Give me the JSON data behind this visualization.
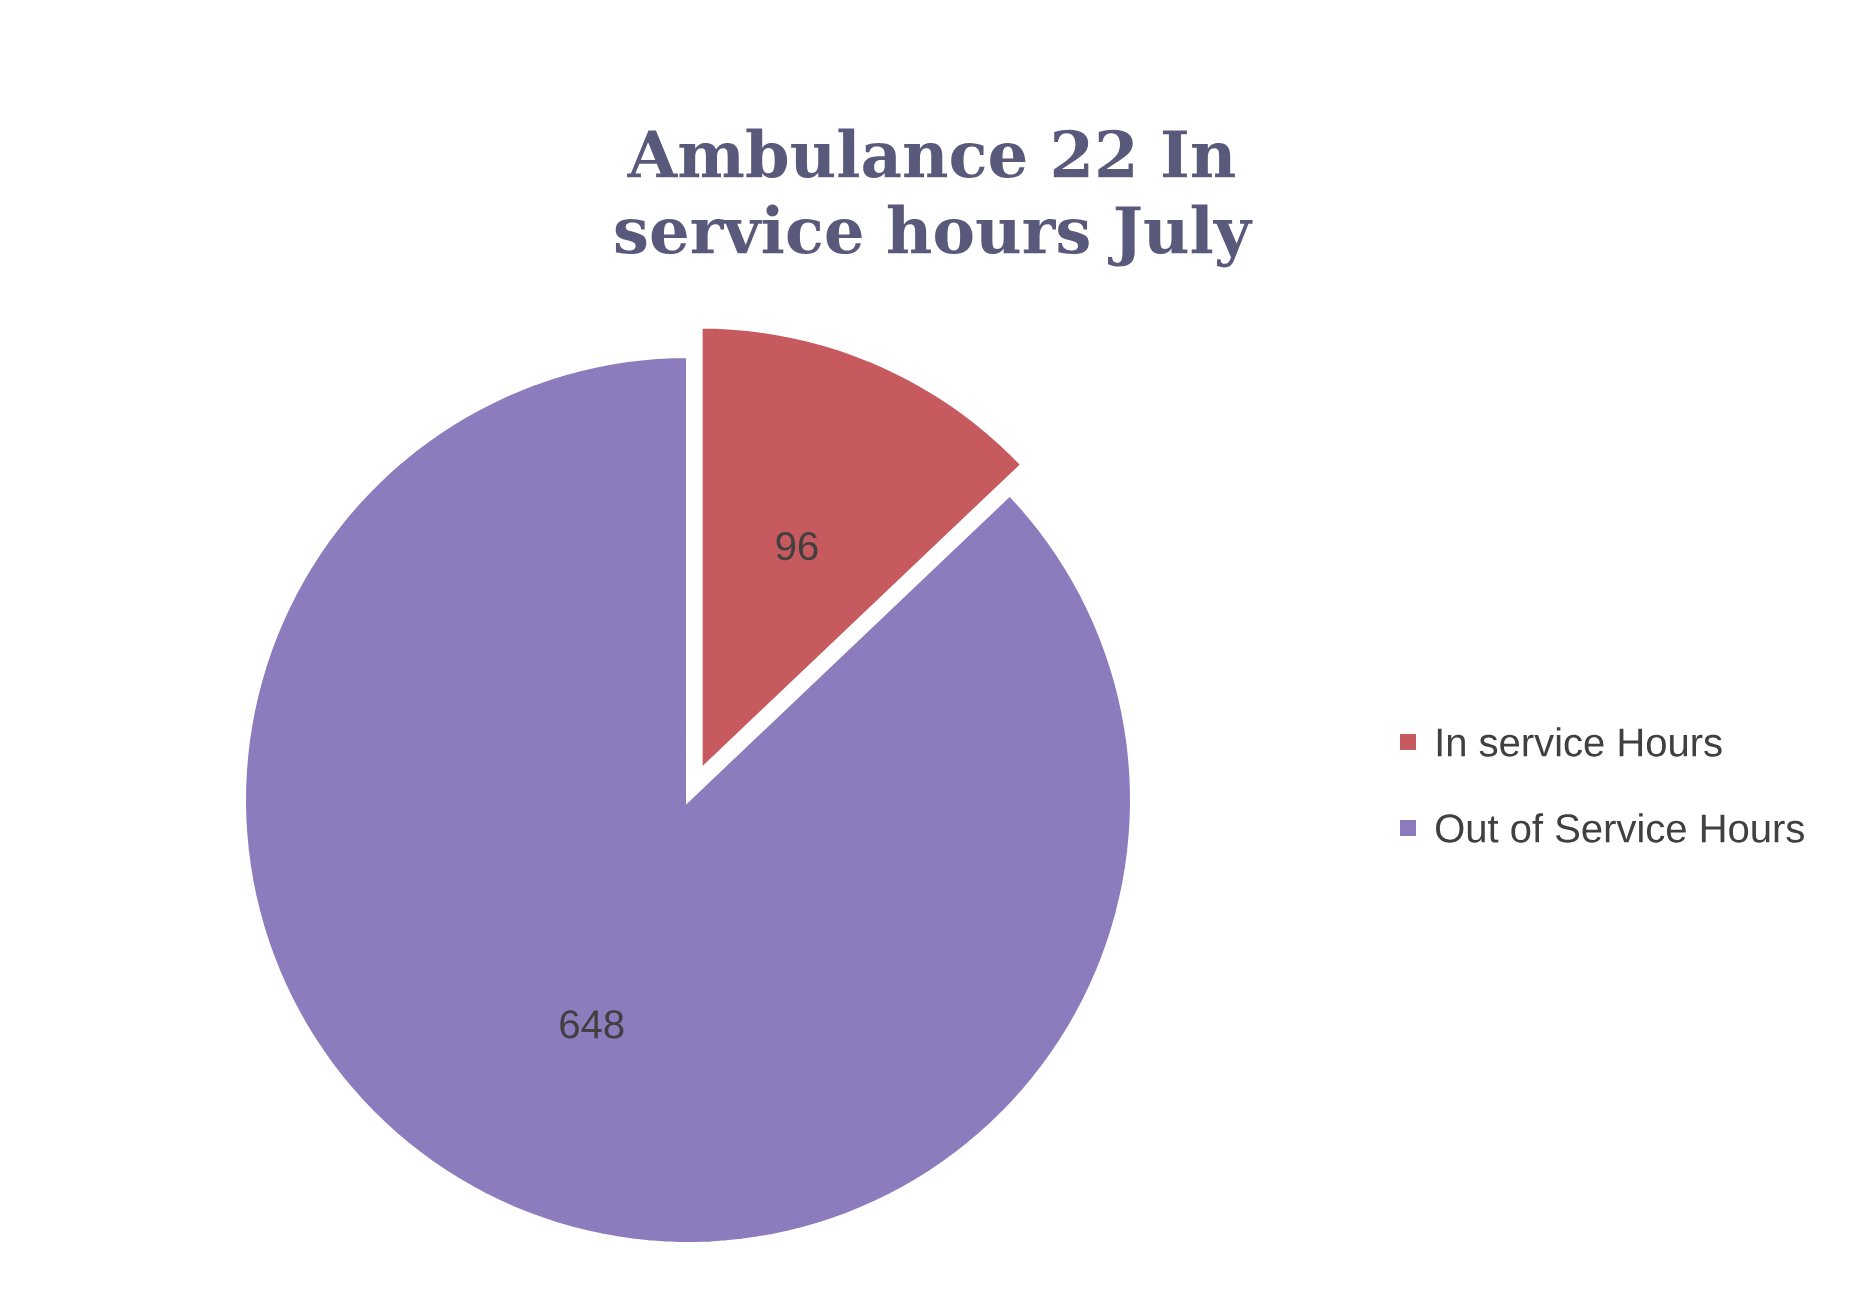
{
  "chart_data": {
    "type": "pie",
    "title": "Ambulance 22 In service hours July",
    "categories": [
      "In service Hours",
      "Out of Service Hours"
    ],
    "values": [
      96,
      648
    ],
    "colors": [
      "#c65a5f",
      "#8c7bbd"
    ],
    "data_labels": true,
    "legend": "right"
  }
}
